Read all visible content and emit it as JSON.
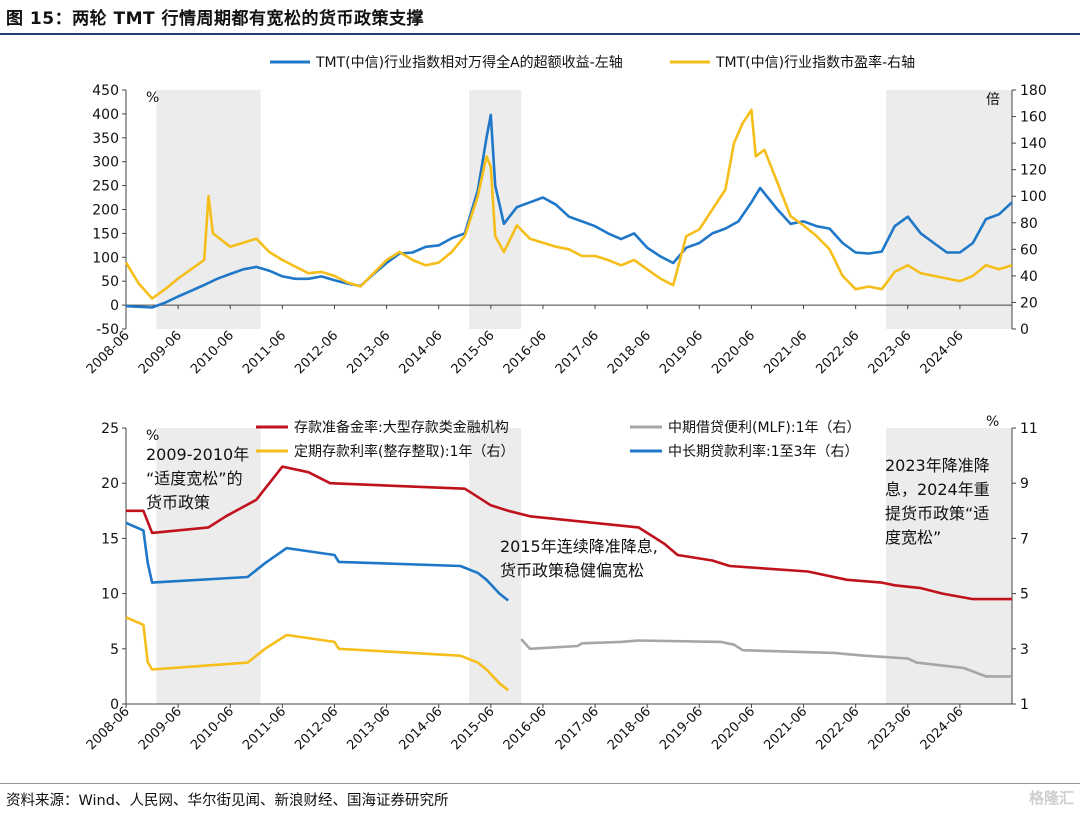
{
  "header": {
    "title": "图 15：两轮 TMT 行情周期都有宽松的货币政策支撑"
  },
  "footer": {
    "source": "资料来源：Wind、人民网、华尔街见闻、新浪财经、国海证券研究所",
    "watermark": "格隆汇"
  },
  "chart_data": [
    {
      "type": "line",
      "title": "",
      "x_tick_labels": [
        "2008-06",
        "2009-06",
        "2010-06",
        "2011-06",
        "2012-06",
        "2013-06",
        "2014-06",
        "2015-06",
        "2016-06",
        "2017-06",
        "2018-06",
        "2019-06",
        "2020-06",
        "2021-06",
        "2022-06",
        "2023-06",
        "2024-06"
      ],
      "x_range": [
        "2008-06",
        "2025-06"
      ],
      "left_axis": {
        "unit": "%",
        "ylim": [
          -50,
          450
        ],
        "ticks": [
          -50,
          0,
          50,
          100,
          150,
          200,
          250,
          300,
          350,
          400,
          450
        ]
      },
      "right_axis": {
        "unit": "倍",
        "ylim": [
          0,
          180
        ],
        "ticks": [
          0,
          20,
          40,
          60,
          80,
          100,
          120,
          140,
          160,
          180
        ]
      },
      "shaded_periods": [
        [
          "2009-01",
          "2011-01"
        ],
        [
          "2015-01",
          "2016-01"
        ],
        [
          "2023-01",
          "2025-06"
        ]
      ],
      "legend_position": "top",
      "series": [
        {
          "name": "TMT(中信)行业指数相对万得全A的超额收益-左轴",
          "axis": "left",
          "color": "#1f77c8",
          "points": [
            [
              "2008-06",
              -2
            ],
            [
              "2008-12",
              -5
            ],
            [
              "2009-03",
              5
            ],
            [
              "2009-06",
              18
            ],
            [
              "2009-09",
              30
            ],
            [
              "2009-12",
              42
            ],
            [
              "2010-03",
              55
            ],
            [
              "2010-06",
              65
            ],
            [
              "2010-09",
              75
            ],
            [
              "2010-12",
              80
            ],
            [
              "2011-03",
              72
            ],
            [
              "2011-06",
              60
            ],
            [
              "2011-09",
              55
            ],
            [
              "2011-12",
              55
            ],
            [
              "2012-03",
              60
            ],
            [
              "2012-06",
              52
            ],
            [
              "2012-09",
              45
            ],
            [
              "2012-12",
              40
            ],
            [
              "2013-03",
              65
            ],
            [
              "2013-06",
              88
            ],
            [
              "2013-09",
              108
            ],
            [
              "2013-12",
              110
            ],
            [
              "2014-03",
              122
            ],
            [
              "2014-06",
              125
            ],
            [
              "2014-09",
              140
            ],
            [
              "2014-12",
              150
            ],
            [
              "2015-03",
              240
            ],
            [
              "2015-05",
              350
            ],
            [
              "2015-06",
              398
            ],
            [
              "2015-07",
              250
            ],
            [
              "2015-09",
              170
            ],
            [
              "2015-12",
              205
            ],
            [
              "2016-03",
              215
            ],
            [
              "2016-06",
              225
            ],
            [
              "2016-09",
              210
            ],
            [
              "2016-12",
              185
            ],
            [
              "2017-03",
              175
            ],
            [
              "2017-06",
              165
            ],
            [
              "2017-09",
              150
            ],
            [
              "2017-12",
              138
            ],
            [
              "2018-03",
              150
            ],
            [
              "2018-06",
              120
            ],
            [
              "2018-09",
              102
            ],
            [
              "2018-12",
              88
            ],
            [
              "2019-03",
              120
            ],
            [
              "2019-06",
              130
            ],
            [
              "2019-09",
              150
            ],
            [
              "2019-12",
              160
            ],
            [
              "2020-03",
              175
            ],
            [
              "2020-06",
              215
            ],
            [
              "2020-08",
              245
            ],
            [
              "2020-12",
              200
            ],
            [
              "2021-03",
              170
            ],
            [
              "2021-06",
              175
            ],
            [
              "2021-09",
              165
            ],
            [
              "2021-12",
              160
            ],
            [
              "2022-03",
              130
            ],
            [
              "2022-06",
              110
            ],
            [
              "2022-09",
              108
            ],
            [
              "2022-12",
              112
            ],
            [
              "2023-03",
              165
            ],
            [
              "2023-06",
              185
            ],
            [
              "2023-09",
              150
            ],
            [
              "2023-12",
              130
            ],
            [
              "2024-03",
              110
            ],
            [
              "2024-06",
              110
            ],
            [
              "2024-09",
              130
            ],
            [
              "2024-12",
              180
            ],
            [
              "2025-03",
              190
            ],
            [
              "2025-06",
              215
            ]
          ]
        },
        {
          "name": "TMT(中信)行业指数市盈率-右轴",
          "axis": "right",
          "color": "#f5be1a",
          "points": [
            [
              "2008-06",
              50
            ],
            [
              "2008-09",
              34
            ],
            [
              "2008-12",
              23
            ],
            [
              "2009-03",
              30
            ],
            [
              "2009-06",
              38
            ],
            [
              "2009-09",
              45
            ],
            [
              "2009-12",
              52
            ],
            [
              "2010-01",
              100
            ],
            [
              "2010-02",
              72
            ],
            [
              "2010-06",
              62
            ],
            [
              "2010-09",
              65
            ],
            [
              "2010-12",
              68
            ],
            [
              "2011-03",
              58
            ],
            [
              "2011-06",
              52
            ],
            [
              "2011-09",
              47
            ],
            [
              "2011-12",
              42
            ],
            [
              "2012-03",
              43
            ],
            [
              "2012-06",
              40
            ],
            [
              "2012-09",
              35
            ],
            [
              "2012-12",
              32
            ],
            [
              "2013-03",
              42
            ],
            [
              "2013-06",
              52
            ],
            [
              "2013-09",
              58
            ],
            [
              "2013-12",
              52
            ],
            [
              "2014-03",
              48
            ],
            [
              "2014-06",
              50
            ],
            [
              "2014-09",
              58
            ],
            [
              "2014-12",
              70
            ],
            [
              "2015-03",
              100
            ],
            [
              "2015-05",
              130
            ],
            [
              "2015-06",
              122
            ],
            [
              "2015-07",
              70
            ],
            [
              "2015-09",
              58
            ],
            [
              "2015-12",
              78
            ],
            [
              "2016-03",
              68
            ],
            [
              "2016-06",
              65
            ],
            [
              "2016-09",
              62
            ],
            [
              "2016-12",
              60
            ],
            [
              "2017-03",
              55
            ],
            [
              "2017-06",
              55
            ],
            [
              "2017-09",
              52
            ],
            [
              "2017-12",
              48
            ],
            [
              "2018-03",
              52
            ],
            [
              "2018-06",
              45
            ],
            [
              "2018-09",
              38
            ],
            [
              "2018-12",
              33
            ],
            [
              "2019-03",
              70
            ],
            [
              "2019-06",
              75
            ],
            [
              "2019-09",
              90
            ],
            [
              "2019-12",
              105
            ],
            [
              "2020-02",
              140
            ],
            [
              "2020-04",
              155
            ],
            [
              "2020-06",
              165
            ],
            [
              "2020-07",
              130
            ],
            [
              "2020-09",
              135
            ],
            [
              "2020-12",
              110
            ],
            [
              "2021-03",
              85
            ],
            [
              "2021-06",
              78
            ],
            [
              "2021-09",
              70
            ],
            [
              "2021-12",
              60
            ],
            [
              "2022-03",
              40
            ],
            [
              "2022-06",
              30
            ],
            [
              "2022-09",
              32
            ],
            [
              "2022-12",
              30
            ],
            [
              "2023-03",
              43
            ],
            [
              "2023-06",
              48
            ],
            [
              "2023-09",
              42
            ],
            [
              "2023-12",
              40
            ],
            [
              "2024-03",
              38
            ],
            [
              "2024-06",
              36
            ],
            [
              "2024-09",
              40
            ],
            [
              "2024-12",
              48
            ],
            [
              "2025-03",
              45
            ],
            [
              "2025-06",
              48
            ]
          ]
        }
      ]
    },
    {
      "type": "line",
      "title": "",
      "x_tick_labels": [
        "2008-06",
        "2009-06",
        "2010-06",
        "2011-06",
        "2012-06",
        "2013-06",
        "2014-06",
        "2015-06",
        "2016-06",
        "2017-06",
        "2018-06",
        "2019-06",
        "2020-06",
        "2021-06",
        "2022-06",
        "2023-06",
        "2024-06"
      ],
      "x_range": [
        "2008-06",
        "2025-06"
      ],
      "left_axis": {
        "unit": "%",
        "ylim": [
          0,
          25
        ],
        "ticks": [
          0,
          5,
          10,
          15,
          20,
          25
        ]
      },
      "right_axis": {
        "unit": "%",
        "ylim": [
          1,
          11
        ],
        "ticks": [
          1,
          3,
          5,
          7,
          9,
          11
        ]
      },
      "shaded_periods": [
        [
          "2009-01",
          "2011-01"
        ],
        [
          "2015-01",
          "2016-01"
        ],
        [
          "2023-01",
          "2025-06"
        ]
      ],
      "legend_position": "top",
      "annotations": [
        "2009-2010年",
        "“适度宽松”的",
        "货币政策",
        "2015年连续降准降息,",
        "货币政策稳健偏宽松",
        "2023年降准降",
        "息，2024年重",
        "提货币政策“适",
        "度宽松”"
      ],
      "series": [
        {
          "name": "存款准备金率:大型存款类金融机构",
          "axis": "left",
          "color": "#c0121c",
          "points": [
            [
              "2008-06",
              17.5
            ],
            [
              "2008-10",
              17.5
            ],
            [
              "2008-12",
              15.5
            ],
            [
              "2010-01",
              16.0
            ],
            [
              "2010-05",
              17.0
            ],
            [
              "2010-12",
              18.5
            ],
            [
              "2011-06",
              21.5
            ],
            [
              "2011-12",
              21.0
            ],
            [
              "2012-05",
              20.0
            ],
            [
              "2014-12",
              19.5
            ],
            [
              "2015-02",
              19.0
            ],
            [
              "2015-06",
              18.0
            ],
            [
              "2015-10",
              17.5
            ],
            [
              "2016-03",
              17.0
            ],
            [
              "2018-04",
              16.0
            ],
            [
              "2018-10",
              14.5
            ],
            [
              "2019-01",
              13.5
            ],
            [
              "2019-09",
              13.0
            ],
            [
              "2020-01",
              12.5
            ],
            [
              "2021-07",
              12.0
            ],
            [
              "2022-04",
              11.25
            ],
            [
              "2022-12",
              11.0
            ],
            [
              "2023-03",
              10.75
            ],
            [
              "2023-09",
              10.5
            ],
            [
              "2024-02",
              10.0
            ],
            [
              "2024-09",
              9.5
            ],
            [
              "2025-06",
              9.5
            ]
          ]
        },
        {
          "name": "中期借贷便利(MLF):1年（右）",
          "axis": "right",
          "color": "#a6a6a6",
          "points": [
            [
              "2016-01",
              3.35
            ],
            [
              "2016-03",
              3.0
            ],
            [
              "2017-02",
              3.1
            ],
            [
              "2017-03",
              3.2
            ],
            [
              "2017-12",
              3.25
            ],
            [
              "2018-04",
              3.3
            ],
            [
              "2019-11",
              3.25
            ],
            [
              "2020-02",
              3.15
            ],
            [
              "2020-04",
              2.95
            ],
            [
              "2022-01",
              2.85
            ],
            [
              "2022-08",
              2.75
            ],
            [
              "2023-06",
              2.65
            ],
            [
              "2023-08",
              2.5
            ],
            [
              "2024-07",
              2.3
            ],
            [
              "2024-12",
              2.0
            ],
            [
              "2025-06",
              2.0
            ]
          ]
        },
        {
          "name": "定期存款利率(整存整取):1年（右）",
          "axis": "right",
          "color": "#f5be1a",
          "points": [
            [
              "2008-06",
              4.14
            ],
            [
              "2008-10",
              3.87
            ],
            [
              "2008-11",
              2.52
            ],
            [
              "2008-12",
              2.25
            ],
            [
              "2010-10",
              2.5
            ],
            [
              "2011-02",
              3.0
            ],
            [
              "2011-07",
              3.5
            ],
            [
              "2012-06",
              3.25
            ],
            [
              "2012-07",
              3.0
            ],
            [
              "2014-11",
              2.75
            ],
            [
              "2015-03",
              2.5
            ],
            [
              "2015-05",
              2.25
            ],
            [
              "2015-08",
              1.75
            ],
            [
              "2015-10",
              1.5
            ]
          ]
        },
        {
          "name": "中长期贷款利率:1至3年（右）",
          "axis": "right",
          "color": "#1f77c8",
          "points": [
            [
              "2008-06",
              7.56
            ],
            [
              "2008-10",
              7.29
            ],
            [
              "2008-11",
              6.12
            ],
            [
              "2008-12",
              5.4
            ],
            [
              "2010-10",
              5.6
            ],
            [
              "2011-02",
              6.1
            ],
            [
              "2011-07",
              6.65
            ],
            [
              "2012-06",
              6.4
            ],
            [
              "2012-07",
              6.15
            ],
            [
              "2014-11",
              6.0
            ],
            [
              "2015-03",
              5.75
            ],
            [
              "2015-05",
              5.5
            ],
            [
              "2015-08",
              5.0
            ],
            [
              "2015-10",
              4.75
            ]
          ]
        }
      ]
    }
  ]
}
